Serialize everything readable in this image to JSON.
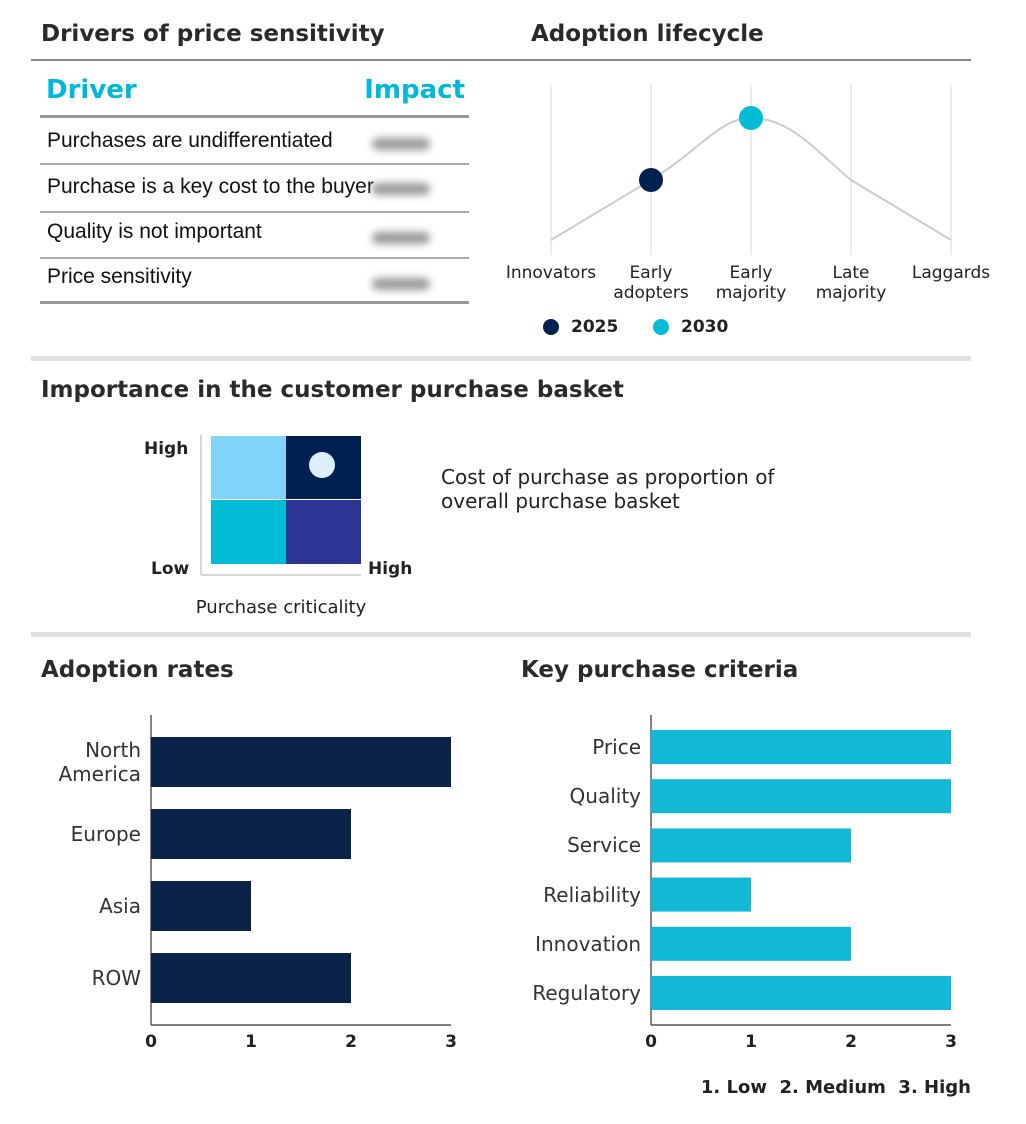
{
  "drivers": {
    "title": "Drivers of price sensitivity",
    "headers": {
      "driver": "Driver",
      "impact": "Impact"
    },
    "rows": [
      {
        "driver": "Purchases are undifferentiated"
      },
      {
        "driver": "Purchase is a key cost to the buyer"
      },
      {
        "driver": "Quality is not important"
      },
      {
        "driver": "Price sensitivity"
      }
    ]
  },
  "lifecycle": {
    "title": "Adoption lifecycle",
    "stages": [
      "Innovators",
      "Early adopters",
      "Early majority",
      "Late majority",
      "Laggards"
    ],
    "stage_lines": [
      [
        "Innovators"
      ],
      [
        "Early",
        "adopters"
      ],
      [
        "Early",
        "majority"
      ],
      [
        "Late",
        "majority"
      ],
      [
        "Laggards"
      ]
    ],
    "legend": [
      {
        "label": "2025",
        "stage": "Early adopters",
        "color": "#002050"
      },
      {
        "label": "2030",
        "stage": "Early majority",
        "color": "#00bcd4"
      }
    ]
  },
  "basket": {
    "title": "Importance in the customer purchase basket",
    "y_high": "High",
    "y_low": "Low",
    "x_high": "High",
    "x_label": "Purchase criticality",
    "marker_cell": "high-high",
    "description_lines": [
      "Cost of purchase as proportion of",
      "overall purchase basket"
    ],
    "colors": {
      "low_high": "#80d4fa",
      "high_high": "#002050",
      "low_low": "#00bcd4",
      "high_low": "#2b3595"
    }
  },
  "chart_data": [
    {
      "type": "bar",
      "orientation": "horizontal",
      "title": "Adoption rates",
      "categories": [
        "North America",
        "Europe",
        "Asia",
        "ROW"
      ],
      "category_lines": [
        [
          "North",
          "America"
        ],
        [
          "Europe"
        ],
        [
          "Asia"
        ],
        [
          "ROW"
        ]
      ],
      "values": [
        3,
        2,
        1,
        2
      ],
      "xlim": [
        0,
        3
      ],
      "ticks": [
        "0",
        "1",
        "2",
        "3"
      ],
      "color": "#0a2248"
    },
    {
      "type": "bar",
      "orientation": "horizontal",
      "title": "Key purchase criteria",
      "categories": [
        "Price",
        "Quality",
        "Service",
        "Reliability",
        "Innovation",
        "Regulatory"
      ],
      "values": [
        3,
        3,
        2,
        1,
        2,
        3
      ],
      "xlim": [
        0,
        3
      ],
      "ticks": [
        "0",
        "1",
        "2",
        "3"
      ],
      "color": "#12b9d6"
    }
  ],
  "scale_legend": "1. Low  2. Medium  3. High"
}
